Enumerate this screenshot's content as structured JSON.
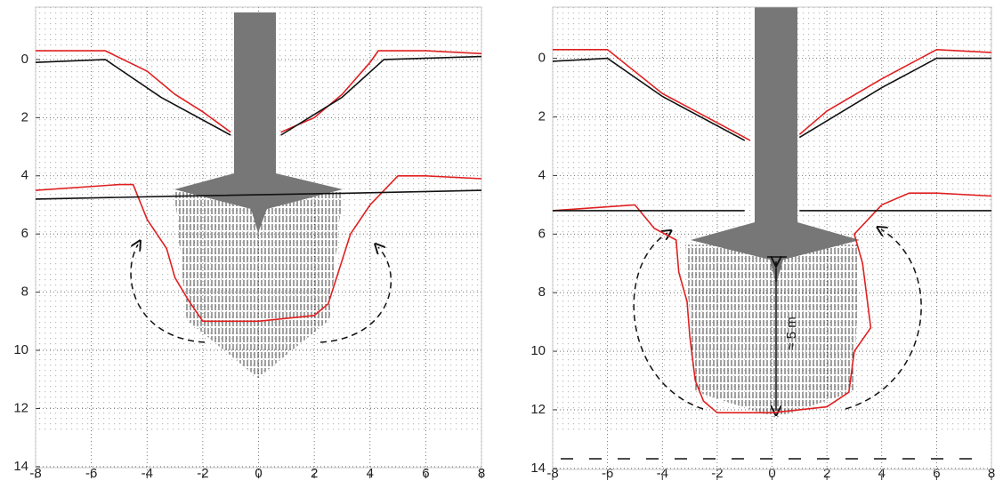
{
  "chart_data": [
    {
      "type": "line",
      "xlim": [
        -8,
        8
      ],
      "ylim": [
        -1.8,
        14.4
      ],
      "y_inverted": true,
      "grid": true,
      "xticks": [
        -8,
        -6,
        -4,
        -2,
        0,
        2,
        4,
        6,
        8
      ],
      "yticks": [
        0,
        2,
        4,
        6,
        8,
        10,
        12,
        14
      ],
      "series": [
        {
          "color": "#e02020",
          "x": [
            -8,
            -5.5,
            -4,
            -3,
            -2,
            -1
          ],
          "values": [
            -0.3,
            -0.3,
            0.4,
            1.2,
            1.8,
            2.5
          ]
        },
        {
          "color": "#e02020",
          "x": [
            0.8,
            2,
            3,
            4,
            4.3,
            6,
            8
          ],
          "values": [
            2.5,
            2,
            1.2,
            0.1,
            -0.3,
            -0.3,
            -0.2
          ]
        },
        {
          "color": "#111111",
          "x": [
            -8,
            -5.5,
            -3.5,
            -1
          ],
          "values": [
            0.1,
            0,
            1.3,
            2.6
          ]
        },
        {
          "color": "#111111",
          "x": [
            0.8,
            3,
            4.5,
            8
          ],
          "values": [
            2.6,
            1.3,
            0,
            -0.1
          ]
        },
        {
          "color": "#e02020",
          "x": [
            -8,
            -5,
            -4.5,
            -4,
            -3.3,
            -3,
            -2.5,
            -2,
            0,
            2,
            2.5,
            2.8,
            3.3,
            4,
            5,
            6,
            8
          ],
          "values": [
            4.5,
            4.3,
            4.3,
            5.5,
            6.5,
            7.5,
            8.3,
            9,
            9,
            8.8,
            8.4,
            7.5,
            6,
            5,
            4,
            4,
            4.1
          ]
        },
        {
          "color": "#111111",
          "x": [
            -8,
            -3,
            3,
            8
          ],
          "values": [
            4.8,
            4.7,
            4.6,
            4.5
          ]
        }
      ]
    },
    {
      "type": "line",
      "xlim": [
        -8,
        8
      ],
      "ylim": [
        -1.75,
        14.4
      ],
      "y_inverted": true,
      "grid": true,
      "xticks": [
        -8,
        -6,
        -4,
        -2,
        0,
        2,
        4,
        6,
        8
      ],
      "yticks": [
        0,
        2,
        4,
        6,
        8,
        10,
        12,
        14
      ],
      "annotation": "≈ 5 m",
      "series": [
        {
          "color": "#e02020",
          "x": [
            -8,
            -6,
            -4,
            -2,
            -0.8
          ],
          "values": [
            -0.3,
            -0.3,
            1.2,
            2.2,
            2.8
          ]
        },
        {
          "color": "#e02020",
          "x": [
            1,
            2,
            4,
            6,
            8
          ],
          "values": [
            2.6,
            1.8,
            0.7,
            -0.3,
            -0.2
          ]
        },
        {
          "color": "#111111",
          "x": [
            -8,
            -6,
            -4,
            -1
          ],
          "values": [
            0.1,
            0,
            1.3,
            2.8
          ]
        },
        {
          "color": "#111111",
          "x": [
            1,
            4,
            6,
            8
          ],
          "values": [
            2.7,
            1,
            0,
            0
          ]
        },
        {
          "color": "#e02020",
          "x": [
            -8,
            -5,
            -4.3,
            -3.5,
            -3.4,
            -3.1,
            -3,
            -2.8,
            -2.5,
            -2,
            0,
            2,
            2.8,
            3,
            3.6,
            3.3,
            3,
            4,
            5,
            6,
            8
          ],
          "values": [
            5.2,
            5,
            5.8,
            6.2,
            7.3,
            8.3,
            9.5,
            11,
            11.7,
            12.1,
            12.1,
            11.9,
            11.4,
            10,
            9.2,
            7,
            6,
            5,
            4.6,
            4.6,
            4.7
          ]
        },
        {
          "color": "#111111",
          "x": [
            -8,
            -1
          ],
          "values": [
            5.2,
            5.2
          ]
        },
        {
          "color": "#111111",
          "x": [
            1,
            8
          ],
          "values": [
            5.2,
            5.2
          ]
        }
      ]
    }
  ]
}
